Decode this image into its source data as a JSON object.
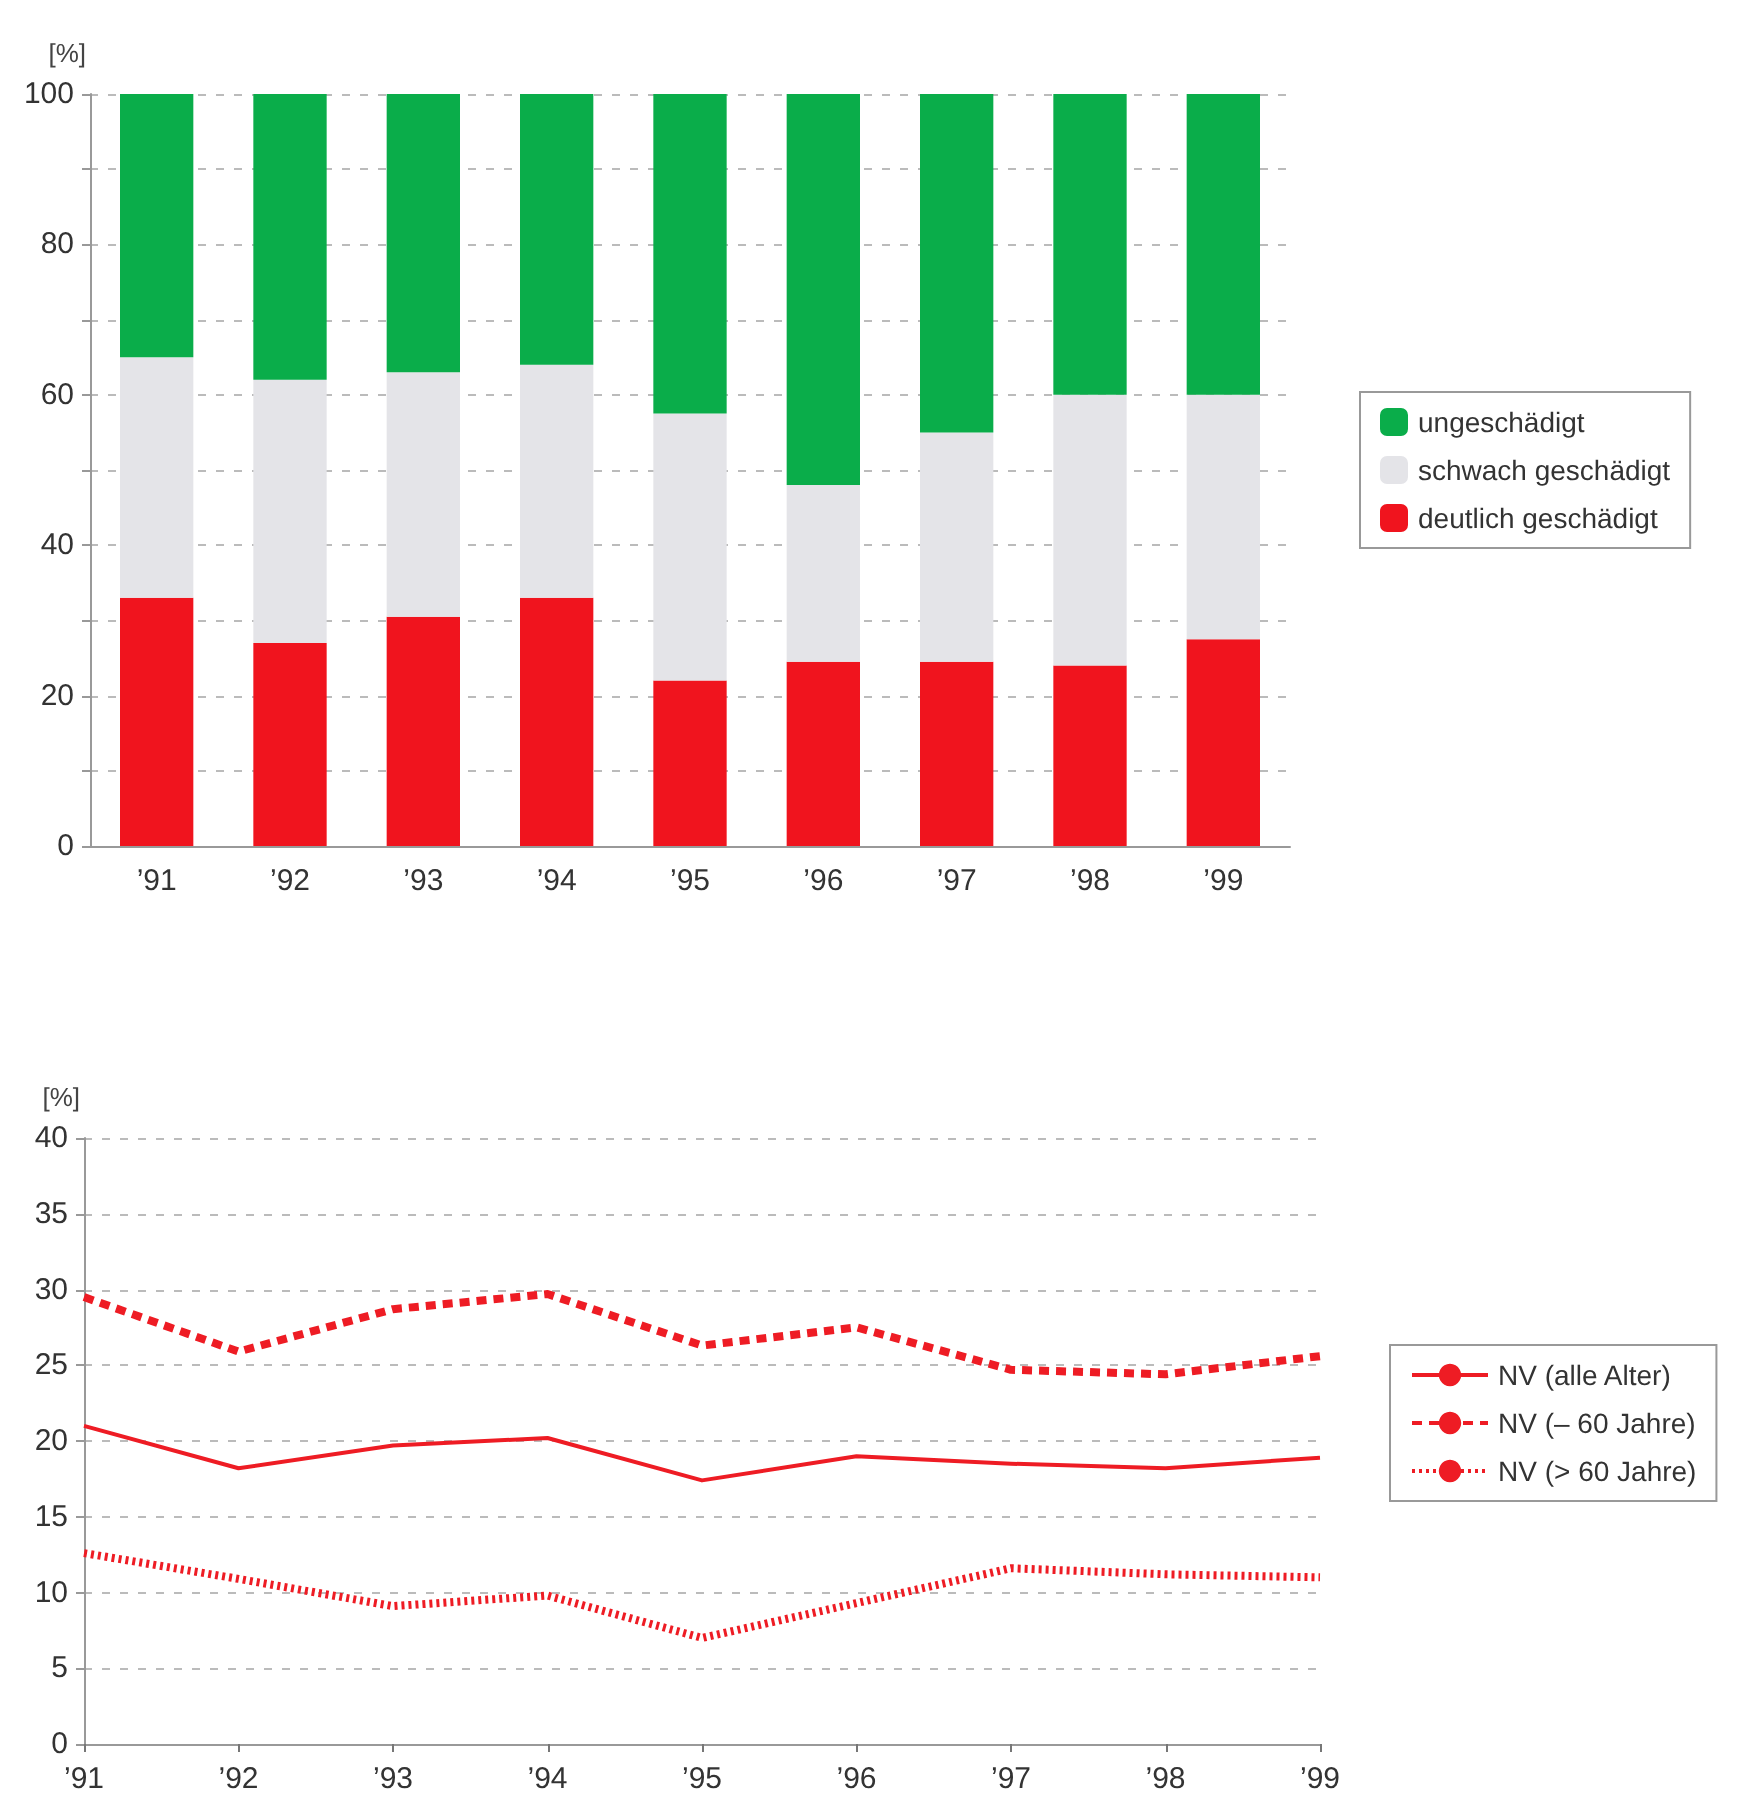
{
  "chart_data": [
    {
      "type": "bar",
      "stacked": true,
      "ylabel": "[%]",
      "categories": [
        "’91",
        "’92",
        "’93",
        "’94",
        "’95",
        "’96",
        "’97",
        "’98",
        "’99"
      ],
      "series": [
        {
          "name": "deutlich geschädigt",
          "color": "#f0141e",
          "values": [
            33,
            27,
            30.5,
            33,
            22,
            24.5,
            24.5,
            24,
            27.5
          ]
        },
        {
          "name": "schwach geschädigt",
          "color": "#e4e4e8",
          "values": [
            32,
            35,
            32.5,
            31,
            35.5,
            23.5,
            30.5,
            36,
            32.5
          ]
        },
        {
          "name": "ungeschädigt",
          "color": "#0aad4a",
          "values": [
            35,
            38,
            37,
            36,
            42.5,
            52,
            45,
            40,
            40
          ]
        }
      ],
      "ylim": [
        0,
        100
      ],
      "yticks": [
        0,
        {
          "value": 10,
          "label": null
        },
        20,
        {
          "value": 30,
          "label": null
        },
        40,
        {
          "value": 50,
          "label": null
        },
        60,
        {
          "value": 70,
          "label": null
        },
        80,
        {
          "value": 90,
          "label": null
        },
        100
      ],
      "grid": "y",
      "legend": "right"
    },
    {
      "type": "line",
      "ylabel": "[%]",
      "categories": [
        "’91",
        "’92",
        "’93",
        "’94",
        "’95",
        "’96",
        "’97",
        "’98",
        "’99"
      ],
      "series": [
        {
          "name": "NV (alle Alter)",
          "color": "#ee1c24",
          "line_style": "solid",
          "values": [
            21,
            18.2,
            19.7,
            20.2,
            17.4,
            19,
            18.5,
            18.2,
            18.9
          ]
        },
        {
          "name": "NV (– 60 Jahre)",
          "color": "#ee1c24",
          "line_style": "dashed",
          "values": [
            29.5,
            25.9,
            28.7,
            29.7,
            26.3,
            27.5,
            24.7,
            24.4,
            25.6
          ]
        },
        {
          "name": "NV (> 60 Jahre)",
          "color": "#ee1c24",
          "line_style": "dotted",
          "values": [
            12.6,
            10.9,
            9.1,
            9.8,
            7,
            9.3,
            11.6,
            11.2,
            11
          ]
        }
      ],
      "ylim": [
        0,
        40
      ],
      "yticks": [
        0,
        5,
        10,
        15,
        20,
        25,
        30,
        35,
        40
      ],
      "grid": "y",
      "legend": "right",
      "marker": "none"
    }
  ]
}
